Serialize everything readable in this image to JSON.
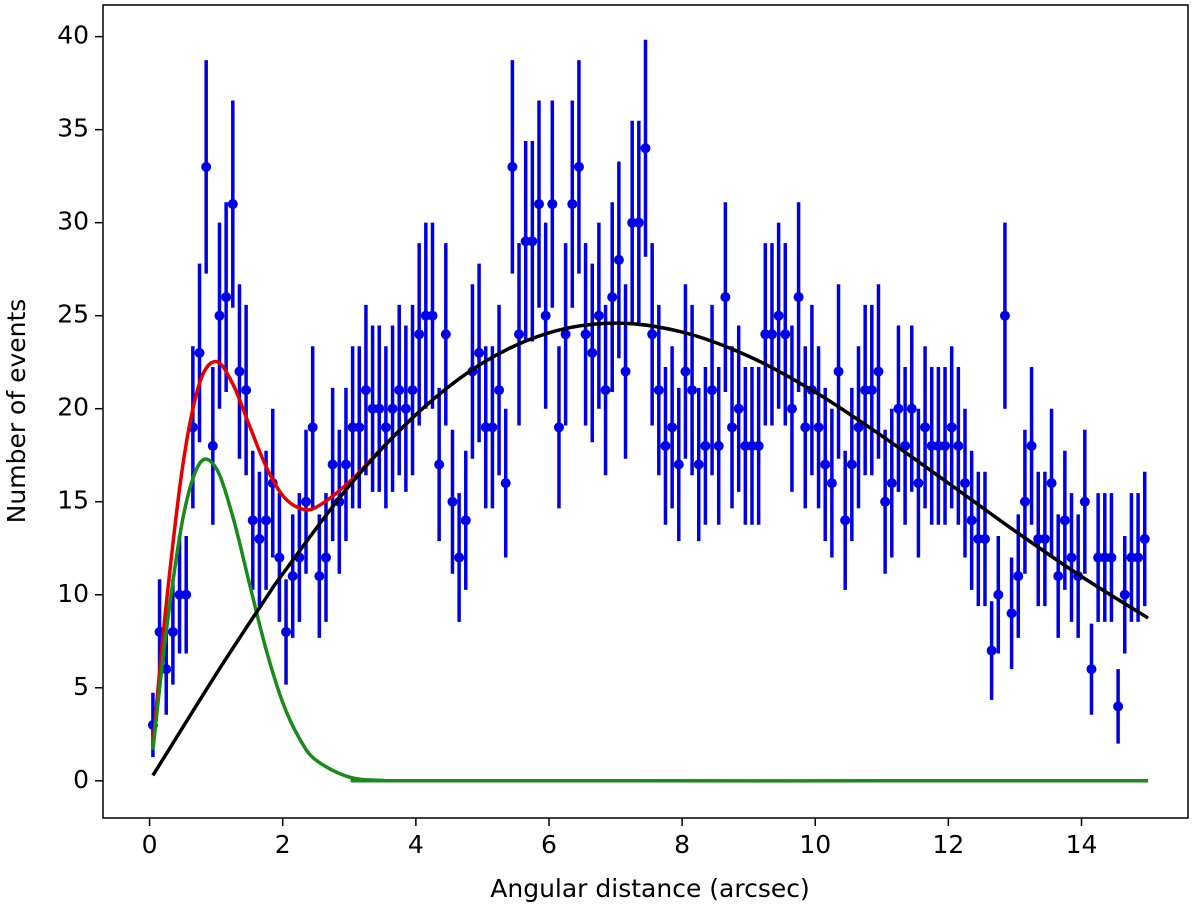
{
  "chart_data": {
    "type": "errorbar",
    "xlabel": "Angular distance (arcsec)",
    "ylabel": "Number of events",
    "xlim": [
      -0.7,
      15.6
    ],
    "ylim": [
      -2,
      41.7
    ],
    "xticks": [
      0,
      2,
      4,
      6,
      8,
      10,
      12,
      14
    ],
    "yticks": [
      0,
      5,
      10,
      15,
      20,
      25,
      30,
      35,
      40
    ],
    "points": {
      "color": "#0000e6",
      "x": [
        0.05,
        0.15,
        0.25,
        0.35,
        0.45,
        0.55,
        0.65,
        0.75,
        0.85,
        0.95,
        1.05,
        1.15,
        1.25,
        1.35,
        1.45,
        1.55,
        1.65,
        1.75,
        1.85,
        1.95,
        2.05,
        2.15,
        2.25,
        2.35,
        2.45,
        2.55,
        2.65,
        2.75,
        2.85,
        2.95,
        3.05,
        3.15,
        3.25,
        3.35,
        3.45,
        3.55,
        3.65,
        3.75,
        3.85,
        3.95,
        4.05,
        4.15,
        4.25,
        4.35,
        4.45,
        4.55,
        4.65,
        4.75,
        4.85,
        4.95,
        5.05,
        5.15,
        5.25,
        5.35,
        5.45,
        5.55,
        5.65,
        5.75,
        5.85,
        5.95,
        6.05,
        6.15,
        6.25,
        6.35,
        6.45,
        6.55,
        6.65,
        6.75,
        6.85,
        6.95,
        7.05,
        7.15,
        7.25,
        7.35,
        7.45,
        7.55,
        7.65,
        7.75,
        7.85,
        7.95,
        8.05,
        8.15,
        8.25,
        8.35,
        8.45,
        8.55,
        8.65,
        8.75,
        8.85,
        8.95,
        9.05,
        9.15,
        9.25,
        9.35,
        9.45,
        9.55,
        9.65,
        9.75,
        9.85,
        9.95,
        10.05,
        10.15,
        10.25,
        10.35,
        10.45,
        10.55,
        10.65,
        10.75,
        10.85,
        10.95,
        11.05,
        11.15,
        11.25,
        11.35,
        11.45,
        11.55,
        11.65,
        11.75,
        11.85,
        11.95,
        12.05,
        12.15,
        12.25,
        12.35,
        12.45,
        12.55,
        12.65,
        12.75,
        12.85,
        12.95,
        13.05,
        13.15,
        13.25,
        13.35,
        13.45,
        13.55,
        13.65,
        13.75,
        13.85,
        13.95,
        14.05,
        14.15,
        14.25,
        14.35,
        14.45,
        14.55,
        14.65,
        14.75,
        14.85,
        14.95
      ],
      "values": [
        3,
        8,
        6,
        8,
        10,
        10,
        19,
        23,
        33,
        18,
        25,
        26,
        31,
        22,
        21,
        14,
        13,
        14,
        16,
        12,
        8,
        11,
        12,
        15,
        19,
        11,
        12,
        17,
        15,
        17,
        19,
        19,
        21,
        20,
        20,
        19,
        20,
        21,
        20,
        21,
        24,
        25,
        25,
        17,
        24,
        15,
        12,
        14,
        22,
        23,
        19,
        19,
        21,
        16,
        33,
        24,
        29,
        29,
        31,
        25,
        31,
        19,
        24,
        31,
        33,
        24,
        23,
        25,
        21,
        26,
        28,
        22,
        30,
        30,
        34,
        24,
        21,
        18,
        19,
        17,
        22,
        21,
        17,
        18,
        21,
        18,
        26,
        19,
        20,
        18,
        18,
        18,
        24,
        24,
        25,
        24,
        20,
        26,
        19,
        21,
        19,
        17,
        16,
        22,
        14,
        17,
        19,
        21,
        21,
        22,
        15,
        16,
        20,
        18,
        20,
        16,
        19,
        18,
        18,
        18,
        19,
        18,
        16,
        14,
        13,
        13,
        7,
        10,
        25,
        9,
        11,
        15,
        18,
        13,
        13,
        16,
        11,
        14,
        12,
        11,
        15,
        6,
        12,
        12,
        12,
        4,
        10,
        12,
        12,
        13
      ],
      "errors": [
        1.73,
        2.83,
        2.45,
        2.83,
        3.16,
        3.16,
        4.36,
        4.8,
        5.74,
        4.24,
        5,
        5.1,
        5.57,
        4.69,
        4.58,
        3.74,
        3.61,
        3.74,
        4,
        3.46,
        2.83,
        3.32,
        3.46,
        3.87,
        4.36,
        3.32,
        3.46,
        4.12,
        3.87,
        4.12,
        4.36,
        4.36,
        4.58,
        4.47,
        4.47,
        4.36,
        4.47,
        4.58,
        4.47,
        4.58,
        4.9,
        5,
        5,
        4.12,
        4.9,
        3.87,
        3.46,
        3.74,
        4.69,
        4.8,
        4.36,
        4.36,
        4.58,
        4,
        5.74,
        4.9,
        5.39,
        5.39,
        5.57,
        5,
        5.57,
        4.36,
        4.9,
        5.57,
        5.74,
        4.9,
        4.8,
        5,
        4.58,
        5.1,
        5.29,
        4.69,
        5.48,
        5.48,
        5.83,
        4.9,
        4.58,
        4.24,
        4.36,
        4.12,
        4.69,
        4.58,
        4.12,
        4.24,
        4.58,
        4.24,
        5.1,
        4.36,
        4.47,
        4.24,
        4.24,
        4.24,
        4.9,
        4.9,
        5,
        4.9,
        4.47,
        5.1,
        4.36,
        4.58,
        4.36,
        4.12,
        4,
        4.69,
        3.74,
        4.12,
        4.36,
        4.58,
        4.58,
        4.69,
        3.87,
        4,
        4.47,
        4.24,
        4.47,
        4,
        4.36,
        4.24,
        4.24,
        4.24,
        4.36,
        4.24,
        4,
        3.74,
        3.61,
        3.61,
        2.65,
        3.16,
        5,
        3,
        3.32,
        3.87,
        4.24,
        3.61,
        3.61,
        4,
        3.32,
        3.74,
        3.46,
        3.32,
        3.87,
        2.45,
        3.46,
        3.46,
        3.46,
        2,
        3.16,
        3.46,
        3.46,
        3.61
      ]
    },
    "curves": [
      {
        "color": "#e60000",
        "x": [
          0.05,
          0.25,
          0.5,
          0.75,
          1,
          1.25,
          1.5,
          1.75,
          2,
          2.25,
          2.5,
          3,
          3.5,
          4
        ],
        "values": [
          1.96,
          9.48,
          16.99,
          21.37,
          22.54,
          21.33,
          19.09,
          16.89,
          15.33,
          14.66,
          14.7,
          16.06,
          17.92,
          19.68
        ]
      },
      {
        "color": "#1a8a1a",
        "x": [
          0.05,
          0.25,
          0.5,
          0.75,
          1,
          1.25,
          1.5,
          1.75,
          2,
          2.25,
          2.5,
          3,
          3.5,
          4,
          15
        ],
        "values": [
          1.67,
          8.03,
          14.1,
          17.05,
          16.8,
          14.2,
          10.6,
          7.06,
          4.21,
          2.28,
          1.11,
          0.2,
          0.02,
          0,
          0
        ]
      },
      {
        "color": "#000000",
        "x": [
          0.05,
          1,
          1.75,
          2,
          3,
          4,
          5,
          6,
          7,
          8,
          9,
          10,
          11,
          12,
          13,
          14,
          15
        ],
        "values": [
          0.29,
          5.74,
          9.83,
          11.12,
          15.86,
          19.68,
          22.45,
          24.08,
          24.6,
          24.12,
          22.82,
          20.89,
          18.54,
          16,
          13.43,
          10.98,
          8.75
        ]
      }
    ]
  }
}
